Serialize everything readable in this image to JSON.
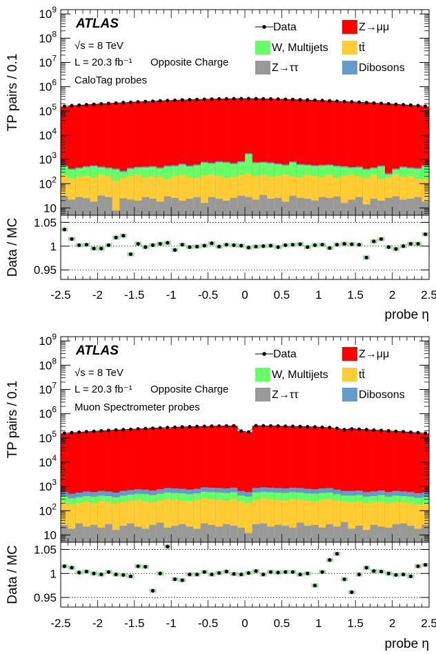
{
  "colors": {
    "zmumu": "#ff0000",
    "wjets": "#66ff66",
    "ttbar": "#ffcc33",
    "ztautau": "#999999",
    "dibosons": "#6699cc",
    "data": "#000000"
  },
  "chart_data": [
    {
      "type": "histogram-stack-with-ratio",
      "experiment": "ATLAS",
      "energy_label": "√s = 8 TeV",
      "lumi_label": "L = 20.3 fb⁻¹",
      "charge_label": "Opposite Charge",
      "probe_label": "CaloTag probes",
      "xlabel": "probe η",
      "ylabel_main": "TP pairs / 0.1",
      "ylabel_ratio": "Data / MC",
      "xlim": [
        -2.5,
        2.5
      ],
      "ylim_log": [
        5,
        1500000000.0
      ],
      "ylim_ratio": [
        0.93,
        1.065
      ],
      "x_ticks": [
        "-2.5",
        "-2",
        "-1.5",
        "-1",
        "-0.5",
        "0",
        "0.5",
        "1",
        "1.5",
        "2",
        "2.5"
      ],
      "y_ticks_main": [
        "10",
        "10^2",
        "10^3",
        "10^4",
        "10^5",
        "10^6",
        "10^7",
        "10^8",
        "10^9"
      ],
      "y_ticks_ratio": [
        "0.95",
        "1",
        "1.05"
      ],
      "legend": {
        "data": "Data",
        "zmumu": "Z→μμ",
        "wjets": "W, Multijets",
        "ttbar": "tt̄",
        "ztautau": "Z→ττ",
        "dibosons": "Dibosons"
      },
      "bins": [
        -2.5,
        -2.4,
        -2.3,
        -2.2,
        -2.1,
        -2.0,
        -1.9,
        -1.8,
        -1.7,
        -1.6,
        -1.5,
        -1.4,
        -1.3,
        -1.2,
        -1.1,
        -1.0,
        -0.9,
        -0.8,
        -0.7,
        -0.6,
        -0.5,
        -0.4,
        -0.3,
        -0.2,
        -0.1,
        0.0,
        0.1,
        0.2,
        0.3,
        0.4,
        0.5,
        0.6,
        0.7,
        0.8,
        0.9,
        1.0,
        1.1,
        1.2,
        1.3,
        1.4,
        1.5,
        1.6,
        1.7,
        1.8,
        1.9,
        2.0,
        2.1,
        2.2,
        2.3,
        2.4
      ],
      "x": [
        -2.45,
        -2.35,
        -2.25,
        -2.15,
        -2.05,
        -1.95,
        -1.85,
        -1.75,
        -1.65,
        -1.55,
        -1.45,
        -1.35,
        -1.25,
        -1.15,
        -1.05,
        -0.95,
        -0.85,
        -0.75,
        -0.65,
        -0.55,
        -0.45,
        -0.35,
        -0.25,
        -0.15,
        -0.05,
        0.05,
        0.15,
        0.25,
        0.35,
        0.45,
        0.55,
        0.65,
        0.75,
        0.85,
        0.95,
        1.05,
        1.15,
        1.25,
        1.35,
        1.45,
        1.55,
        1.65,
        1.75,
        1.85,
        1.95,
        2.05,
        2.15,
        2.25,
        2.35,
        2.45
      ],
      "data": [
        155000.0,
        165000.0,
        172000.0,
        180000.0,
        188000.0,
        196000.0,
        204000.0,
        212000.0,
        220000.0,
        228000.0,
        236000.0,
        244000.0,
        252000.0,
        260000.0,
        268000.0,
        276000.0,
        284000.0,
        290000.0,
        296000.0,
        302000.0,
        308000.0,
        313000.0,
        317000.0,
        320000.0,
        322000.0,
        322000.0,
        320000.0,
        317000.0,
        313000.0,
        308000.0,
        302000.0,
        296000.0,
        290000.0,
        284000.0,
        276000.0,
        268000.0,
        260000.0,
        252000.0,
        244000.0,
        236000.0,
        228000.0,
        220000.0,
        212000.0,
        204000.0,
        196000.0,
        188000.0,
        180000.0,
        172000.0,
        165000.0,
        155000.0
      ],
      "ratio": [
        1.035,
        1.015,
        1.002,
        1.003,
        0.995,
        0.995,
        1.002,
        1.018,
        1.022,
        0.983,
        1.005,
        0.998,
        1.002,
        1.005,
        1.007,
        0.992,
        1.003,
        0.998,
        0.999,
        1.001,
        1.006,
        0.999,
        1.003,
        1.002,
        1.001,
        0.997,
        0.999,
        1.0,
        1.001,
        0.998,
        1.002,
        1.003,
        1.004,
        0.998,
        1.002,
        1.003,
        0.996,
        1.003,
        1.005,
        1.004,
        1.003,
        0.976,
        1.01,
        1.015,
        0.998,
        0.994,
        1.0,
        1.005,
        1.005,
        1.025
      ],
      "ztautau": [
        30,
        22,
        28,
        25,
        18,
        32,
        28,
        8,
        25,
        22,
        20,
        28,
        24,
        18,
        30,
        26,
        20,
        24,
        28,
        16,
        28,
        24,
        20,
        26,
        32,
        28,
        22,
        34,
        24,
        26,
        18,
        32,
        26,
        24,
        20,
        28,
        26,
        30,
        16,
        22,
        28,
        14,
        24,
        20,
        26,
        30,
        22,
        24,
        28,
        18
      ],
      "ttbar": [
        220,
        160,
        190,
        210,
        180,
        230,
        200,
        130,
        170,
        210,
        240,
        180,
        200,
        190,
        160,
        210,
        230,
        190,
        170,
        220,
        240,
        210,
        180,
        190,
        230,
        260,
        200,
        220,
        190,
        210,
        240,
        200,
        180,
        230,
        210,
        190,
        220,
        180,
        210,
        240,
        200,
        170,
        230,
        160,
        180,
        240,
        190,
        210,
        160,
        150
      ],
      "wjets": [
        500,
        380,
        420,
        480,
        520,
        460,
        420,
        380,
        300,
        400,
        450,
        460,
        480,
        420,
        500,
        520,
        600,
        500,
        560,
        720,
        660,
        760,
        720,
        640,
        760,
        1650,
        700,
        720,
        680,
        620,
        560,
        740,
        580,
        560,
        520,
        540,
        560,
        500,
        480,
        440,
        460,
        380,
        420,
        500,
        240,
        380,
        460,
        420,
        400,
        520
      ],
      "dibosons": [
        560,
        420,
        470,
        530,
        570,
        510,
        470,
        420,
        340,
        450,
        500,
        510,
        530,
        470,
        560,
        580,
        670,
        560,
        620,
        800,
        730,
        840,
        800,
        710,
        840,
        1800,
        780,
        800,
        760,
        690,
        620,
        820,
        650,
        620,
        580,
        600,
        620,
        560,
        530,
        490,
        510,
        420,
        470,
        560,
        270,
        420,
        510,
        470,
        450,
        580
      ]
    },
    {
      "type": "histogram-stack-with-ratio",
      "experiment": "ATLAS",
      "energy_label": "√s = 8 TeV",
      "lumi_label": "L = 20.3 fb⁻¹",
      "charge_label": "Opposite Charge",
      "probe_label": "Muon Spectrometer probes",
      "xlabel": "probe η",
      "ylabel_main": "TP pairs / 0.1",
      "ylabel_ratio": "Data / MC",
      "xlim": [
        -2.5,
        2.5
      ],
      "ylim_log": [
        5,
        1500000000.0
      ],
      "ylim_ratio": [
        0.93,
        1.065
      ],
      "x_ticks": [
        "-2.5",
        "-2",
        "-1.5",
        "-1",
        "-0.5",
        "0",
        "0.5",
        "1",
        "1.5",
        "2",
        "2.5"
      ],
      "y_ticks_main": [
        "10",
        "10^2",
        "10^3",
        "10^4",
        "10^5",
        "10^6",
        "10^7",
        "10^8",
        "10^9"
      ],
      "y_ticks_ratio": [
        "0.95",
        "1",
        "1.05"
      ],
      "legend": {
        "data": "Data",
        "zmumu": "Z→μμ",
        "wjets": "W, Multijets",
        "ttbar": "tt̄",
        "ztautau": "Z→ττ",
        "dibosons": "Dibosons"
      },
      "bins": [
        -2.5,
        -2.4,
        -2.3,
        -2.2,
        -2.1,
        -2.0,
        -1.9,
        -1.8,
        -1.7,
        -1.6,
        -1.5,
        -1.4,
        -1.3,
        -1.2,
        -1.1,
        -1.0,
        -0.9,
        -0.8,
        -0.7,
        -0.6,
        -0.5,
        -0.4,
        -0.3,
        -0.2,
        -0.1,
        0.0,
        0.1,
        0.2,
        0.3,
        0.4,
        0.5,
        0.6,
        0.7,
        0.8,
        0.9,
        1.0,
        1.1,
        1.2,
        1.3,
        1.4,
        1.5,
        1.6,
        1.7,
        1.8,
        1.9,
        2.0,
        2.1,
        2.2,
        2.3,
        2.4
      ],
      "x": [
        -2.45,
        -2.35,
        -2.25,
        -2.15,
        -2.05,
        -1.95,
        -1.85,
        -1.75,
        -1.65,
        -1.55,
        -1.45,
        -1.35,
        -1.25,
        -1.15,
        -1.05,
        -0.95,
        -0.85,
        -0.75,
        -0.65,
        -0.55,
        -0.45,
        -0.35,
        -0.25,
        -0.15,
        -0.05,
        0.05,
        0.15,
        0.25,
        0.35,
        0.45,
        0.55,
        0.65,
        0.75,
        0.85,
        0.95,
        1.05,
        1.15,
        1.25,
        1.35,
        1.45,
        1.55,
        1.65,
        1.75,
        1.85,
        1.95,
        2.05,
        2.15,
        2.25,
        2.35,
        2.45
      ],
      "data": [
        155000.0,
        165000.0,
        172000.0,
        180000.0,
        188000.0,
        196000.0,
        204000.0,
        212000.0,
        220000.0,
        228000.0,
        236000.0,
        244000.0,
        252000.0,
        260000.0,
        268000.0,
        276000.0,
        284000.0,
        290000.0,
        296000.0,
        300000.0,
        305000.0,
        310000.0,
        314000.0,
        317000.0,
        190000.0,
        175000.0,
        320000.0,
        317000.0,
        314000.0,
        310000.0,
        305000.0,
        300000.0,
        296000.0,
        290000.0,
        284000.0,
        276000.0,
        268000.0,
        250000.0,
        220000.0,
        236000.0,
        228000.0,
        220000.0,
        212000.0,
        204000.0,
        196000.0,
        188000.0,
        180000.0,
        172000.0,
        165000.0,
        155000.0
      ],
      "ratio": [
        1.015,
        1.012,
        1.002,
        1.004,
        1.0,
        0.998,
        1.003,
        0.998,
        0.997,
        0.994,
        1.015,
        1.014,
        0.964,
        1.0,
        1.056,
        0.988,
        0.986,
        0.998,
        0.998,
        1.003,
        0.998,
        1.001,
        1.004,
        0.999,
        0.998,
        1.001,
        1.005,
        0.998,
        1.003,
        1.002,
        1.003,
        1.003,
        0.998,
        1.0,
        0.975,
        1.003,
        1.028,
        1.041,
        0.988,
        0.961,
        0.998,
        1.012,
        1.005,
        1.004,
        1.0,
        0.997,
        0.998,
        0.994,
        1.015,
        1.018
      ],
      "ztautau": [
        25,
        18,
        30,
        22,
        26,
        20,
        28,
        16,
        24,
        30,
        22,
        18,
        26,
        32,
        20,
        24,
        28,
        22,
        18,
        30,
        26,
        22,
        28,
        24,
        20,
        12,
        28,
        30,
        22,
        26,
        24,
        20,
        32,
        24,
        26,
        20,
        28,
        22,
        34,
        18,
        24,
        16,
        26,
        22,
        20,
        28,
        30,
        24,
        18,
        26
      ],
      "ttbar": [
        220,
        180,
        210,
        230,
        200,
        250,
        220,
        200,
        230,
        250,
        280,
        240,
        220,
        260,
        300,
        280,
        260,
        240,
        280,
        320,
        300,
        280,
        260,
        300,
        240,
        200,
        280,
        320,
        300,
        280,
        260,
        300,
        280,
        260,
        240,
        280,
        300,
        260,
        240,
        220,
        240,
        200,
        220,
        240,
        200,
        230,
        220,
        200,
        180,
        190
      ],
      "wjets": [
        380,
        320,
        360,
        400,
        380,
        420,
        400,
        360,
        420,
        460,
        500,
        480,
        440,
        500,
        560,
        540,
        520,
        480,
        520,
        600,
        580,
        560,
        540,
        580,
        420,
        380,
        560,
        600,
        580,
        560,
        540,
        580,
        560,
        520,
        500,
        540,
        560,
        480,
        420,
        420,
        440,
        380,
        400,
        440,
        380,
        420,
        400,
        380,
        340,
        360
      ],
      "dibosons": [
        600,
        500,
        560,
        620,
        590,
        650,
        620,
        560,
        650,
        710,
        770,
        740,
        680,
        770,
        860,
        830,
        800,
        740,
        800,
        920,
        890,
        860,
        830,
        890,
        650,
        590,
        860,
        920,
        890,
        860,
        830,
        890,
        860,
        800,
        770,
        830,
        860,
        740,
        650,
        650,
        680,
        590,
        620,
        680,
        590,
        650,
        620,
        590,
        530,
        560
      ]
    }
  ]
}
